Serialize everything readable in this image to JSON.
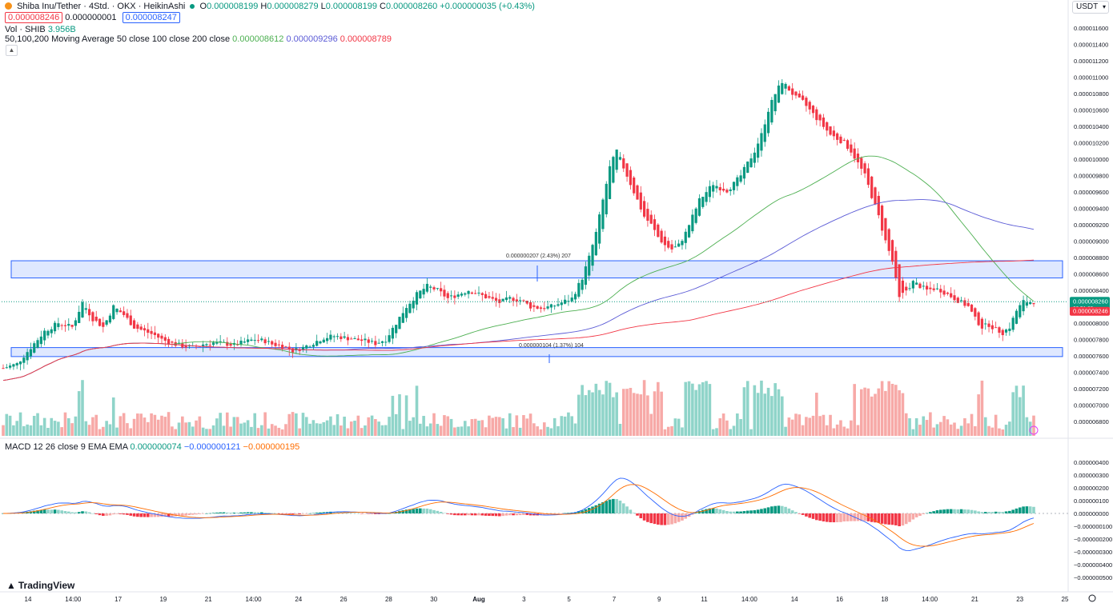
{
  "header": {
    "symbol": "Shiba Inu/Tether · 4Std. · OKX · HeikinAshi",
    "ohlc_o_label": "O",
    "ohlc_o": "0.000008199",
    "ohlc_h_label": "H",
    "ohlc_h": "0.000008279",
    "ohlc_l_label": "L",
    "ohlc_l": "0.000008199",
    "ohlc_c_label": "C",
    "ohlc_c": "0.000008260",
    "change": "+0.000000035 (+0.43%)",
    "bid": "0.000008246",
    "spread": "0.000000001",
    "ask": "0.000008247",
    "vol_label": "Vol · SHIB",
    "vol_value": "3.956B",
    "ma_label": "50,100,200 Moving Average 50 close 100 close 200 close",
    "ma50_value": "0.000008612",
    "ma100_value": "0.000009296",
    "ma200_value": "0.000008789",
    "macd_label": "MACD 12 26 close 9 EMA EMA",
    "macd_hist": "0.000000074",
    "macd_line": "−0.000000121",
    "macd_signal": "−0.000000195",
    "currency": "USDT",
    "logo": "TradingView"
  },
  "colors": {
    "up": "#089981",
    "down": "#f23645",
    "up_vol": "#8fd4c9",
    "down_vol": "#f7a9a7",
    "ma50": "#4caf50",
    "ma100": "#5b5bd6",
    "ma200": "#f23645",
    "macd": "#2962ff",
    "signal": "#ff6d00",
    "zone": "#2962ff"
  },
  "chart_data": {
    "type": "candlestick",
    "price_axis_ticks": [
      "0.000011600",
      "0.000011400",
      "0.000011200",
      "0.000011000",
      "0.000010800",
      "0.000010600",
      "0.000010400",
      "0.000010200",
      "0.000010000",
      "0.000009800",
      "0.000009600",
      "0.000009400",
      "0.000009200",
      "0.000009000",
      "0.000008800",
      "0.000008600",
      "0.000008400",
      "0.000008200",
      "0.000008000",
      "0.000007800",
      "0.000007600",
      "0.000007400",
      "0.000007200",
      "0.000007000",
      "0.000006800"
    ],
    "price_range": [
      6.7e-06,
      1.17e-05
    ],
    "macd_axis_ticks": [
      "0.000000400",
      "0.000000300",
      "0.000000200",
      "0.000000100",
      "0.000000000",
      "−0.000000100",
      "−0.000000200",
      "−0.000000300",
      "−0.000000400",
      "−0.000000500"
    ],
    "macd_range": [
      -5.5e-07,
      4.5e-07
    ],
    "x_axis_ticks": [
      "14",
      "14:00",
      "17",
      "19",
      "21",
      "14:00",
      "24",
      "26",
      "28",
      "30",
      "Aug",
      "3",
      "5",
      "7",
      "9",
      "11",
      "14:00",
      "14",
      "16",
      "18",
      "14:00",
      "21",
      "23",
      "25"
    ],
    "current_price": "0.000008260",
    "current_countdown": "03:51:23",
    "bid_price": "0.000008246",
    "zones": [
      {
        "low": 8.55e-06,
        "high": 8.76e-06
      },
      {
        "low": 7.59e-06,
        "high": 7.7e-06
      }
    ],
    "measure_labels": [
      "0.000000207 (2.43%) 207",
      "0.000000104 (1.37%) 104"
    ],
    "price_path": [
      [
        0,
        7.45
      ],
      [
        4,
        7.5
      ],
      [
        8,
        7.7
      ],
      [
        12,
        7.9
      ],
      [
        16,
        8.0
      ],
      [
        20,
        7.95
      ],
      [
        23,
        8.25
      ],
      [
        26,
        8.05
      ],
      [
        29,
        7.95
      ],
      [
        32,
        8.2
      ],
      [
        35,
        8.1
      ],
      [
        38,
        7.95
      ],
      [
        41,
        7.9
      ],
      [
        44,
        7.85
      ],
      [
        46,
        7.8
      ],
      [
        49,
        7.75
      ],
      [
        52,
        7.72
      ],
      [
        55,
        7.7
      ],
      [
        58,
        7.74
      ],
      [
        61,
        7.76
      ],
      [
        64,
        7.75
      ],
      [
        67,
        7.73
      ],
      [
        70,
        7.77
      ],
      [
        73,
        7.8
      ],
      [
        76,
        7.78
      ],
      [
        78,
        7.74
      ],
      [
        81,
        7.72
      ],
      [
        84,
        7.66
      ],
      [
        87,
        7.7
      ],
      [
        90,
        7.76
      ],
      [
        93,
        7.82
      ],
      [
        96,
        7.84
      ],
      [
        99,
        7.82
      ],
      [
        102,
        7.8
      ],
      [
        105,
        7.78
      ],
      [
        108,
        7.75
      ],
      [
        111,
        7.8
      ],
      [
        114,
        8.0
      ],
      [
        117,
        8.2
      ],
      [
        120,
        8.35
      ],
      [
        123,
        8.45
      ],
      [
        126,
        8.4
      ],
      [
        129,
        8.3
      ],
      [
        132,
        8.35
      ],
      [
        135,
        8.4
      ],
      [
        138,
        8.35
      ],
      [
        141,
        8.3
      ],
      [
        144,
        8.25
      ],
      [
        147,
        8.3
      ],
      [
        150,
        8.28
      ],
      [
        153,
        8.2
      ],
      [
        156,
        8.18
      ],
      [
        159,
        8.2
      ],
      [
        162,
        8.25
      ],
      [
        165,
        8.3
      ],
      [
        168,
        8.55
      ],
      [
        170,
        8.8
      ],
      [
        172,
        9.1
      ],
      [
        174,
        9.5
      ],
      [
        176,
        9.9
      ],
      [
        178,
        10.1
      ],
      [
        180,
        9.9
      ],
      [
        182,
        9.7
      ],
      [
        184,
        9.5
      ],
      [
        186,
        9.3
      ],
      [
        188,
        9.2
      ],
      [
        190,
        9.05
      ],
      [
        192,
        8.95
      ],
      [
        194,
        8.9
      ],
      [
        196,
        8.95
      ],
      [
        198,
        9.1
      ],
      [
        200,
        9.3
      ],
      [
        202,
        9.5
      ],
      [
        204,
        9.6
      ],
      [
        206,
        9.7
      ],
      [
        208,
        9.65
      ],
      [
        210,
        9.62
      ],
      [
        212,
        9.7
      ],
      [
        214,
        9.8
      ],
      [
        216,
        9.95
      ],
      [
        218,
        10.1
      ],
      [
        220,
        10.3
      ],
      [
        222,
        10.6
      ],
      [
        224,
        10.8
      ],
      [
        226,
        10.95
      ],
      [
        228,
        10.85
      ],
      [
        230,
        10.75
      ],
      [
        232,
        10.7
      ],
      [
        234,
        10.6
      ],
      [
        236,
        10.5
      ],
      [
        238,
        10.4
      ],
      [
        240,
        10.3
      ],
      [
        242,
        10.25
      ],
      [
        244,
        10.2
      ],
      [
        246,
        10.1
      ],
      [
        248,
        9.95
      ],
      [
        250,
        9.8
      ],
      [
        252,
        9.55
      ],
      [
        254,
        9.3
      ],
      [
        256,
        9.0
      ],
      [
        258,
        8.75
      ],
      [
        260,
        8.3
      ],
      [
        262,
        8.4
      ],
      [
        264,
        8.5
      ],
      [
        266,
        8.45
      ],
      [
        268,
        8.4
      ],
      [
        270,
        8.42
      ],
      [
        272,
        8.4
      ],
      [
        274,
        8.35
      ],
      [
        276,
        8.3
      ],
      [
        278,
        8.25
      ],
      [
        280,
        8.2
      ],
      [
        282,
        8.05
      ],
      [
        284,
        7.95
      ],
      [
        286,
        7.98
      ],
      [
        288,
        7.92
      ],
      [
        290,
        7.88
      ],
      [
        292,
        7.95
      ],
      [
        294,
        8.15
      ],
      [
        296,
        8.26
      ]
    ]
  }
}
